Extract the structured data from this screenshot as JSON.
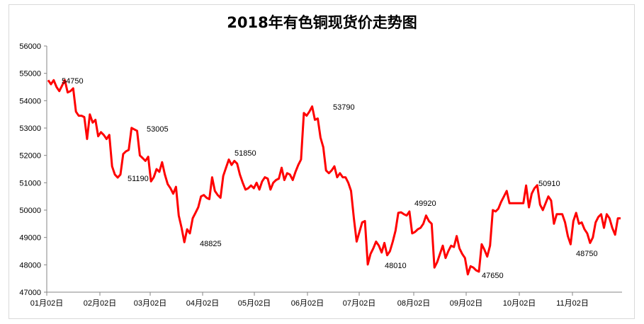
{
  "chart_data": {
    "type": "line",
    "title": "2018年有色铜现货价走势图",
    "xlabel": "",
    "ylabel": "",
    "ylim": [
      47000,
      56000
    ],
    "yticks": [
      47000,
      48000,
      49000,
      50000,
      51000,
      52000,
      53000,
      54000,
      55000,
      56000
    ],
    "xtick_labels": [
      "01月02日",
      "02月02日",
      "03月02日",
      "04月02日",
      "05月02日",
      "06月02日",
      "07月02日",
      "08月02日",
      "09月02日",
      "10月02日",
      "11月02日"
    ],
    "line_color": "#ff0000",
    "grid": false,
    "legend": "none",
    "series": [
      {
        "values": [
          54750,
          54600,
          54750,
          54500,
          54350,
          54550,
          54750,
          54300,
          54350,
          54450,
          53600,
          53450,
          53450,
          53400,
          52600,
          53500,
          53200,
          53300,
          52700,
          52850,
          52750,
          52600,
          52750,
          51600,
          51300,
          51190,
          51300,
          52050,
          52150,
          52200,
          53005,
          52950,
          52900,
          52000,
          51900,
          51800,
          51950,
          51050,
          51200,
          51500,
          51400,
          51750,
          51300,
          50950,
          50800,
          50600,
          50850,
          49800,
          49350,
          48825,
          49300,
          49150,
          49700,
          49900,
          50100,
          50500,
          50550,
          50450,
          50400,
          51200,
          50700,
          50550,
          50450,
          51250,
          51550,
          51850,
          51650,
          51800,
          51700,
          51300,
          51000,
          50750,
          50800,
          50900,
          50800,
          51000,
          50750,
          51050,
          51200,
          51150,
          50750,
          51000,
          51100,
          51150,
          51550,
          51100,
          51350,
          51300,
          51100,
          51400,
          51650,
          51850,
          53550,
          53450,
          53600,
          53790,
          53300,
          53350,
          52650,
          52300,
          51450,
          51350,
          51450,
          51600,
          51200,
          51350,
          51200,
          51200,
          51000,
          50700,
          49700,
          48850,
          49200,
          49550,
          49600,
          48010,
          48400,
          48600,
          48850,
          48700,
          48450,
          48800,
          48350,
          48500,
          48850,
          49250,
          49900,
          49920,
          49850,
          49800,
          49950,
          49150,
          49200,
          49300,
          49350,
          49500,
          49800,
          49600,
          49500,
          47900,
          48100,
          48400,
          48700,
          48250,
          48500,
          48700,
          48650,
          49050,
          48600,
          48400,
          48250,
          47650,
          47950,
          47900,
          47800,
          47750,
          48750,
          48550,
          48300,
          48700,
          50000,
          49950,
          50050,
          50300,
          50500,
          50700,
          50250,
          50250,
          50250,
          50250,
          50250,
          50250,
          50900,
          50100,
          50600,
          50800,
          50910,
          50200,
          50000,
          50250,
          50500,
          50350,
          49500,
          49850,
          49850,
          49850,
          49550,
          49050,
          48750,
          49600,
          49900,
          49500,
          49550,
          49300,
          49150,
          48800,
          49000,
          49550,
          49750,
          49850,
          49350,
          49850,
          49700,
          49350,
          49100,
          49700,
          49700
        ],
        "annotations": [
          {
            "text": "54750",
            "value": 54750
          },
          {
            "text": "51190",
            "value": 51190
          },
          {
            "text": "53005",
            "value": 53005
          },
          {
            "text": "48825",
            "value": 48825
          },
          {
            "text": "51850",
            "value": 51850
          },
          {
            "text": "53790",
            "value": 53790
          },
          {
            "text": "48010",
            "value": 48010
          },
          {
            "text": "49920",
            "value": 49920
          },
          {
            "text": "47650",
            "value": 47650
          },
          {
            "text": "50910",
            "value": 50910
          },
          {
            "text": "48750",
            "value": 48750
          }
        ]
      }
    ]
  }
}
